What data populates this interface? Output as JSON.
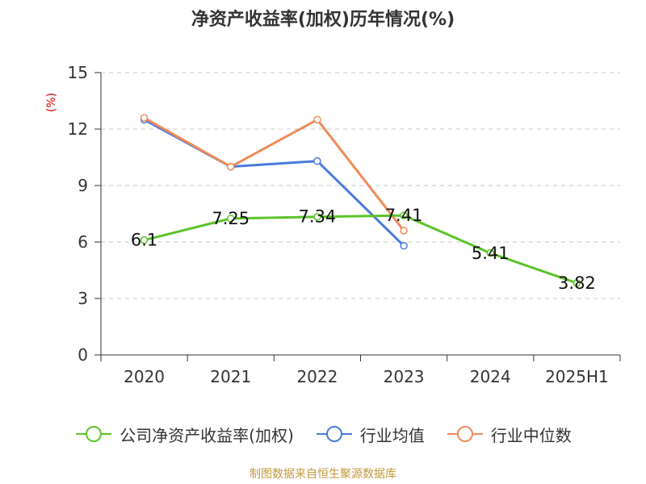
{
  "title": "净资产收益率(加权)历年情况(%)",
  "footer": "制图数据来自恒生聚源数据库",
  "chart_data": {
    "type": "line",
    "title": "净资产收益率(加权)历年情况(%)",
    "ylabel": "(%)",
    "xlabel": "",
    "categories": [
      "2020",
      "2021",
      "2022",
      "2023",
      "2024",
      "2025H1"
    ],
    "ylim": [
      0,
      15
    ],
    "yticks": [
      0,
      3,
      6,
      9,
      12,
      15
    ],
    "grid": true,
    "legend_position": "bottom",
    "series": [
      {
        "name": "公司净资产收益率(加权)",
        "color": "#5cc32a",
        "values": [
          6.1,
          7.25,
          7.34,
          7.41,
          5.41,
          3.82
        ],
        "labels": [
          "6.1",
          "7.25",
          "7.34",
          "7.41",
          "5.41",
          "3.82"
        ]
      },
      {
        "name": "行业均值",
        "color": "#4a7bd8",
        "values": [
          12.5,
          10.0,
          10.3,
          5.8,
          null,
          null
        ]
      },
      {
        "name": "行业中位数",
        "color": "#f08a58",
        "values": [
          12.6,
          10.0,
          12.5,
          6.6,
          null,
          null
        ]
      }
    ]
  }
}
